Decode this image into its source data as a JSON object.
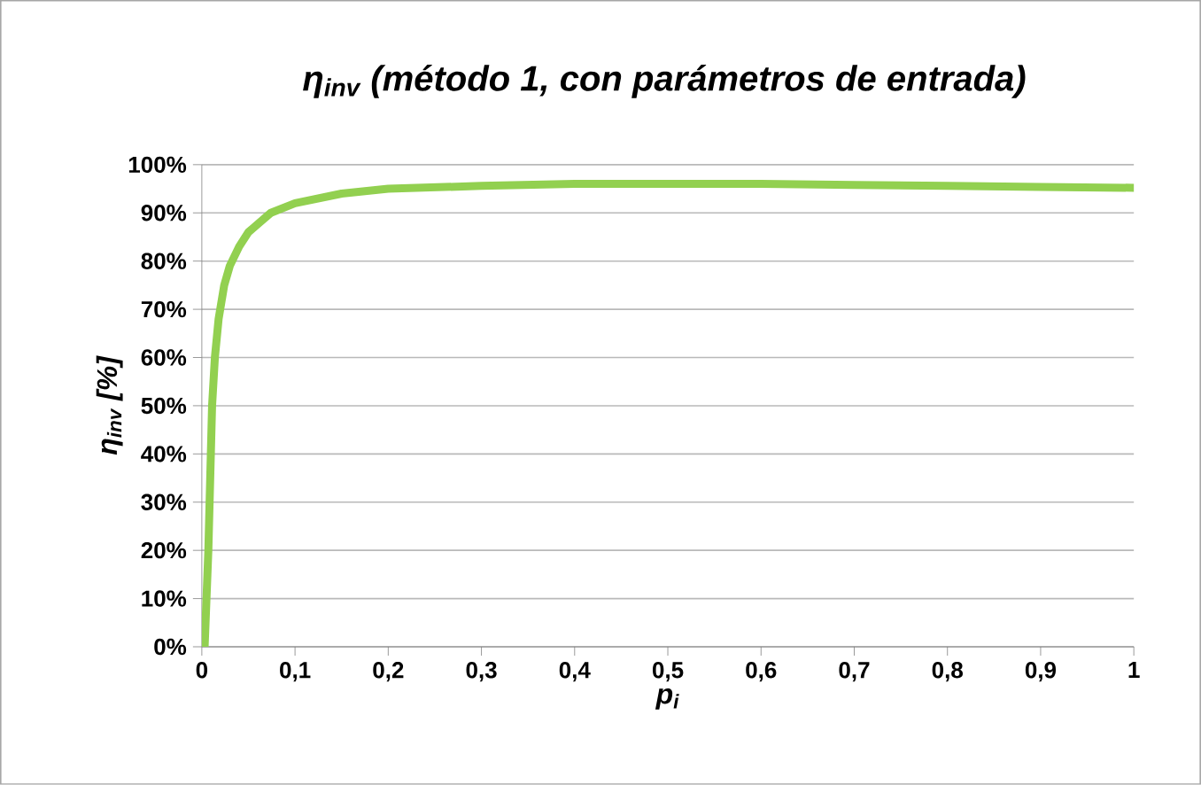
{
  "chart_data": {
    "type": "line",
    "title": "η$_{inv}$ (método 1, con parámetros de entrada)",
    "xlabel": "p$_{i}$",
    "ylabel": "η$_{inv}$ [%]",
    "x": [
      0,
      0.003,
      0.005,
      0.007,
      0.009,
      0.011,
      0.014,
      0.018,
      0.024,
      0.03,
      0.04,
      0.05,
      0.074,
      0.1,
      0.15,
      0.2,
      0.3,
      0.4,
      0.5,
      0.6,
      0.7,
      0.8,
      0.9,
      1
    ],
    "series": [
      {
        "color": "#92d050",
        "values": [
          0,
          0,
          10,
          20,
          35,
          50,
          60,
          68,
          75,
          79,
          83,
          86,
          90,
          92,
          94,
          95,
          95.6,
          96,
          96,
          96,
          95.8,
          95.6,
          95.4,
          95.2
        ]
      }
    ],
    "xlim": [
      0,
      1
    ],
    "ylim": [
      0,
      100
    ],
    "xticks": [
      0,
      {
        "value": 0.1,
        "label": "0,1"
      },
      {
        "value": 0.2,
        "label": "0,2"
      },
      {
        "value": 0.3,
        "label": "0,3"
      },
      {
        "value": 0.4,
        "label": "0,4"
      },
      {
        "value": 0.5,
        "label": "0,5"
      },
      {
        "value": 0.6,
        "label": "0,6"
      },
      {
        "value": 0.7,
        "label": "0,7"
      },
      {
        "value": 0.8,
        "label": "0,8"
      },
      {
        "value": 0.9,
        "label": "0,9"
      },
      1
    ],
    "yticks": [
      {
        "value": 0,
        "label": "0%"
      },
      {
        "value": 10,
        "label": "10%"
      },
      {
        "value": 20,
        "label": "20%"
      },
      {
        "value": 30,
        "label": "30%"
      },
      {
        "value": 40,
        "label": "40%"
      },
      {
        "value": 50,
        "label": "50%"
      },
      {
        "value": 60,
        "label": "60%"
      },
      {
        "value": 70,
        "label": "70%"
      },
      {
        "value": 80,
        "label": "80%"
      },
      {
        "value": 90,
        "label": "90%"
      },
      {
        "value": 100,
        "label": "100%"
      }
    ],
    "grid": "y",
    "marker": "none",
    "line_style": "solid"
  }
}
